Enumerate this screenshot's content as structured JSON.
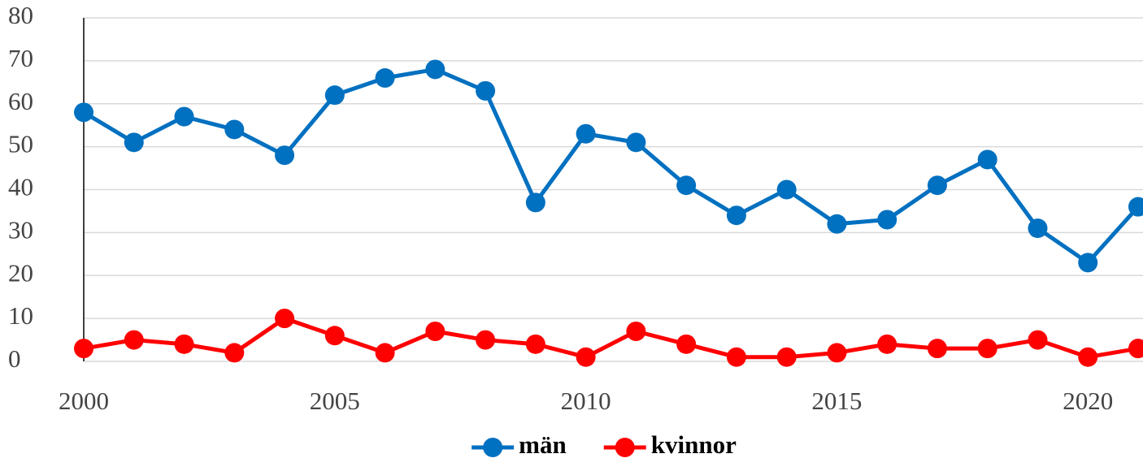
{
  "chart_data": {
    "type": "line",
    "x": [
      2000,
      2001,
      2002,
      2003,
      2004,
      2005,
      2006,
      2007,
      2008,
      2009,
      2010,
      2011,
      2012,
      2013,
      2014,
      2015,
      2016,
      2017,
      2018,
      2019,
      2020,
      2021
    ],
    "series": [
      {
        "name": "män",
        "color": "#0070c0",
        "values": [
          58,
          51,
          57,
          54,
          48,
          62,
          66,
          68,
          63,
          37,
          53,
          51,
          41,
          34,
          40,
          32,
          33,
          41,
          47,
          31,
          23,
          36
        ]
      },
      {
        "name": "kvinnor",
        "color": "#ff0000",
        "values": [
          3,
          5,
          4,
          2,
          10,
          6,
          2,
          7,
          5,
          4,
          1,
          7,
          4,
          1,
          1,
          2,
          4,
          3,
          3,
          5,
          1,
          3
        ]
      }
    ],
    "xlim": [
      2000,
      2021
    ],
    "xticks": [
      2000,
      2005,
      2010,
      2015,
      2020
    ],
    "ylim": [
      0,
      80
    ],
    "yticks": [
      0,
      10,
      20,
      30,
      40,
      50,
      60,
      70,
      80
    ],
    "grid": true,
    "legend": "bottom"
  }
}
